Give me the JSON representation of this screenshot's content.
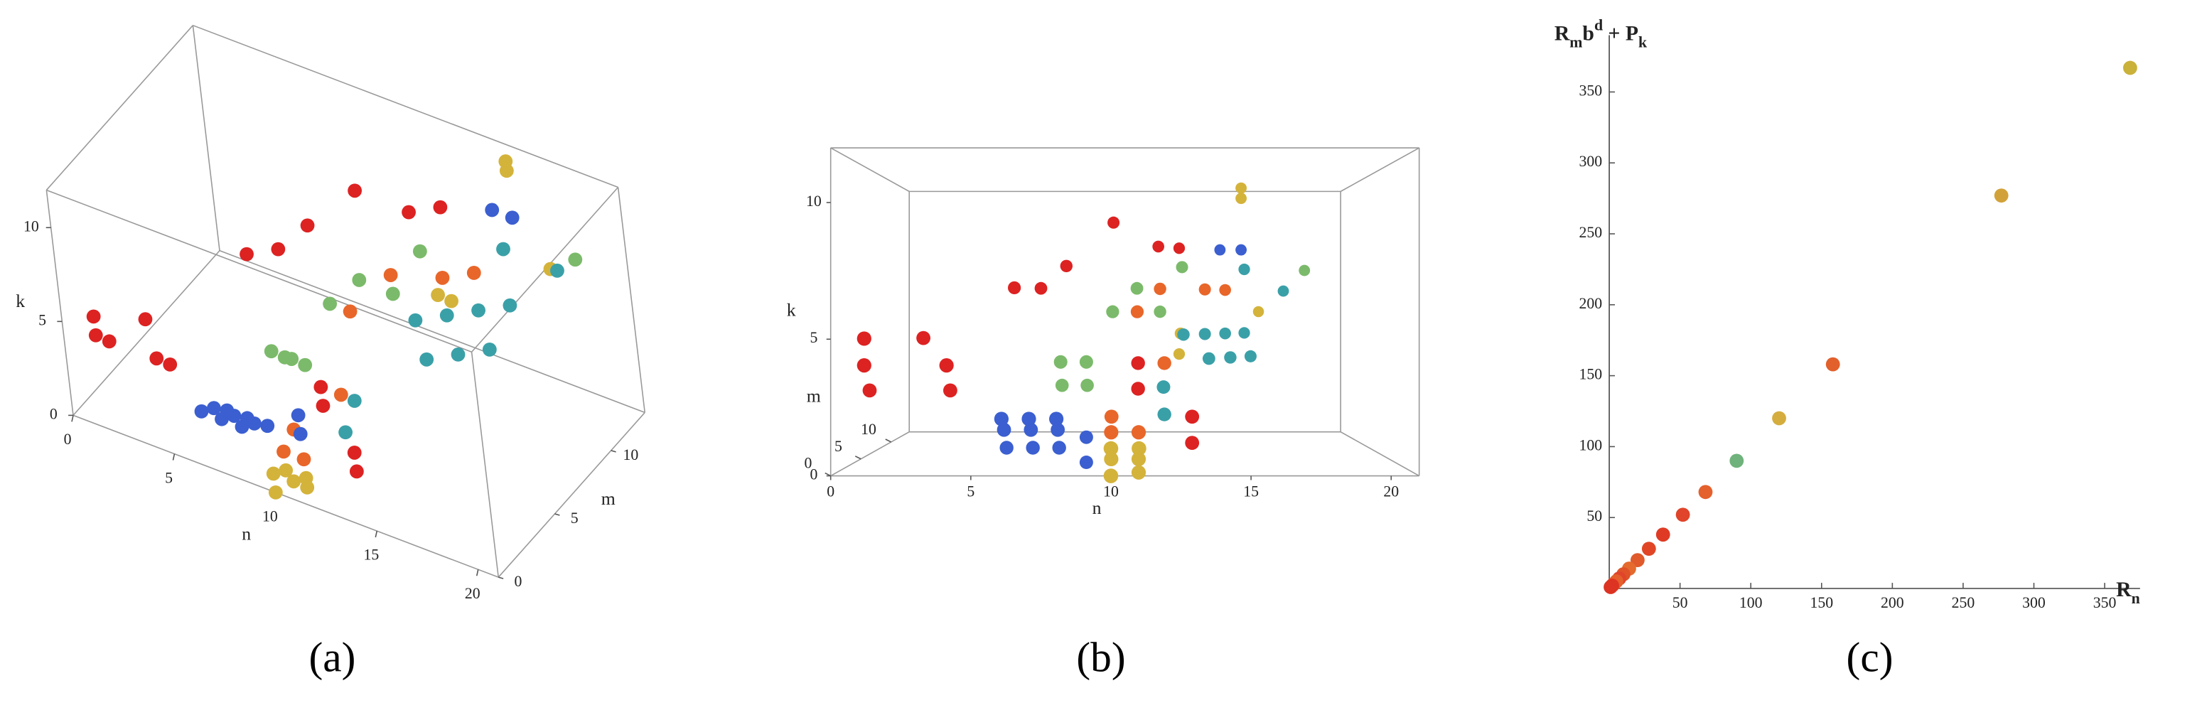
{
  "chart_data": [
    {
      "type": "scatter3d",
      "view": "oblique",
      "label": "(a)",
      "xlabel": "n",
      "ylabel": "m",
      "zlabel": "k",
      "xlim": [
        0,
        21
      ],
      "ylim": [
        0,
        13
      ],
      "zlim": [
        0,
        12
      ],
      "xticks": [
        0,
        5,
        10,
        15,
        20
      ],
      "yticks": [
        0,
        5,
        10
      ],
      "zticks": [
        0,
        5,
        10
      ],
      "series": [
        {
          "color": "#dd2222",
          "x": [
            1,
            1,
            1,
            3,
            4,
            4,
            6,
            7,
            8,
            10,
            12,
            13,
            11,
            11,
            13,
            13
          ],
          "y": [
            1,
            2,
            1,
            2,
            2,
            1,
            6,
            7,
            8,
            9,
            10,
            11,
            3,
            3,
            2,
            2
          ],
          "z": [
            5,
            3,
            4,
            5,
            3,
            4,
            7,
            7,
            8,
            10,
            9,
            9,
            4,
            3,
            2,
            1
          ]
        },
        {
          "color": "#e8662a",
          "x": [
            11,
            12,
            12,
            14,
            15,
            10,
            10,
            11
          ],
          "y": [
            6,
            8,
            3,
            9,
            10,
            2,
            1,
            1
          ],
          "z": [
            6,
            7,
            4,
            7,
            7,
            2,
            1.5,
            1.5
          ]
        },
        {
          "color": "#d4b33a",
          "x": [
            10,
            10,
            11,
            11,
            10,
            11,
            13,
            13,
            16,
            16,
            17
          ],
          "y": [
            0,
            1,
            0,
            1,
            0,
            1,
            10,
            11,
            12,
            12,
            13
          ],
          "z": [
            1,
            0.5,
            1,
            0.5,
            0,
            0,
            5,
            4,
            12,
            11.5,
            6
          ]
        },
        {
          "color": "#7bba6a",
          "x": [
            8,
            9,
            8,
            9,
            11,
            12,
            13,
            19,
            10
          ],
          "y": [
            4,
            4,
            5,
            5,
            7,
            8,
            9,
            12,
            6
          ],
          "z": [
            4,
            4,
            3,
            3,
            7,
            6,
            8,
            8,
            6
          ]
        },
        {
          "color": "#3aa0a8",
          "x": [
            16,
            18,
            13,
            14,
            15,
            16,
            14,
            15,
            16,
            12,
            12
          ],
          "y": [
            11,
            12,
            8,
            9,
            10,
            11,
            7,
            8,
            9,
            4,
            3
          ],
          "z": [
            8,
            7,
            5,
            5,
            5,
            5,
            4,
            4,
            4,
            3,
            2
          ]
        },
        {
          "color": "#3b5fd0",
          "x": [
            6,
            7,
            8,
            6,
            7,
            8,
            6,
            7,
            8,
            9,
            9,
            16,
            15
          ],
          "y": [
            1,
            1,
            1,
            2,
            2,
            2,
            3,
            3,
            3,
            4,
            4,
            12,
            12
          ],
          "z": [
            2,
            2,
            2,
            1.5,
            1.5,
            1.5,
            0.7,
            0.7,
            0.7,
            0,
            1,
            9,
            9
          ]
        }
      ]
    },
    {
      "type": "scatter3d",
      "view": "front",
      "label": "(b)",
      "xlabel": "n",
      "ylabel": "m",
      "zlabel": "k",
      "xlim": [
        0,
        21
      ],
      "ylim": [
        0,
        13
      ],
      "zlim": [
        0,
        12
      ],
      "xticks": [
        0,
        5,
        10,
        15,
        20
      ],
      "yticks": [
        0,
        5,
        10
      ],
      "zticks": [
        0,
        5,
        10
      ],
      "series": [
        {
          "color": "#dd2222",
          "x": [
            1,
            1,
            1,
            3,
            4,
            4,
            6,
            7,
            8,
            10,
            12,
            13,
            11,
            11,
            13,
            13
          ],
          "y": [
            1,
            2,
            1,
            2,
            2,
            1,
            6,
            7,
            8,
            9,
            10,
            11,
            3,
            3,
            2,
            2
          ],
          "z": [
            5,
            3,
            4,
            5,
            3,
            4,
            7,
            7,
            8,
            10,
            9,
            9,
            4,
            3,
            2,
            1
          ]
        },
        {
          "color": "#e8662a",
          "x": [
            11,
            12,
            12,
            14,
            15,
            10,
            10,
            11
          ],
          "y": [
            6,
            8,
            3,
            9,
            10,
            2,
            1,
            1
          ],
          "z": [
            6,
            7,
            4,
            7,
            7,
            2,
            1.5,
            1.5
          ]
        },
        {
          "color": "#d4b33a",
          "x": [
            10,
            10,
            11,
            11,
            10,
            11,
            13,
            13,
            16,
            16,
            17
          ],
          "y": [
            0,
            1,
            0,
            1,
            0,
            1,
            10,
            11,
            12,
            12,
            13
          ],
          "z": [
            1,
            0.5,
            1,
            0.5,
            0,
            0,
            5,
            4,
            12,
            11.5,
            6
          ]
        },
        {
          "color": "#7bba6a",
          "x": [
            8,
            9,
            8,
            9,
            11,
            12,
            13,
            19,
            10
          ],
          "y": [
            4,
            4,
            5,
            5,
            7,
            8,
            9,
            12,
            6
          ],
          "z": [
            4,
            4,
            3,
            3,
            7,
            6,
            8,
            8,
            6
          ]
        },
        {
          "color": "#3aa0a8",
          "x": [
            16,
            18,
            13,
            14,
            15,
            16,
            14,
            15,
            16,
            12,
            12
          ],
          "y": [
            11,
            12,
            8,
            9,
            10,
            11,
            7,
            8,
            9,
            4,
            3
          ],
          "z": [
            8,
            7,
            5,
            5,
            5,
            5,
            4,
            4,
            4,
            3,
            2
          ]
        },
        {
          "color": "#3b5fd0",
          "x": [
            6,
            7,
            8,
            6,
            7,
            8,
            6,
            7,
            8,
            9,
            9,
            16,
            15
          ],
          "y": [
            1,
            1,
            1,
            2,
            2,
            2,
            3,
            3,
            3,
            4,
            4,
            12,
            12
          ],
          "z": [
            2,
            2,
            2,
            1.5,
            1.5,
            1.5,
            0.7,
            0.7,
            0.7,
            0,
            1,
            9,
            9
          ]
        }
      ]
    },
    {
      "type": "scatter",
      "label": "(c)",
      "xlabel": [
        "R",
        "n"
      ],
      "ylabel": [
        "R",
        "m",
        "b",
        "d",
        " + P",
        "k"
      ],
      "xlim": [
        0,
        375
      ],
      "ylim": [
        0,
        390
      ],
      "xticks": [
        50,
        100,
        150,
        200,
        250,
        300,
        350
      ],
      "yticks": [
        50,
        100,
        150,
        200,
        250,
        300,
        350
      ],
      "x": [
        368,
        277,
        158,
        120,
        90,
        68,
        52,
        38,
        28,
        20,
        14,
        10,
        7,
        5,
        3,
        2,
        1
      ],
      "y": [
        367,
        277,
        158,
        120,
        90,
        68,
        52,
        38,
        28,
        20,
        14,
        10,
        7,
        5,
        3,
        2,
        1
      ],
      "colors": [
        "#c9b13a",
        "#d2a23a",
        "#e2602c",
        "#d4ad3e",
        "#6fb27b",
        "#e4602c",
        "#e0442a",
        "#df3b24",
        "#e04626",
        "#e05a2c",
        "#e56a2e",
        "#e05228",
        "#e0442a",
        "#e4602c",
        "#e85e2c",
        "#dd3322",
        "#dd3322"
      ]
    }
  ]
}
